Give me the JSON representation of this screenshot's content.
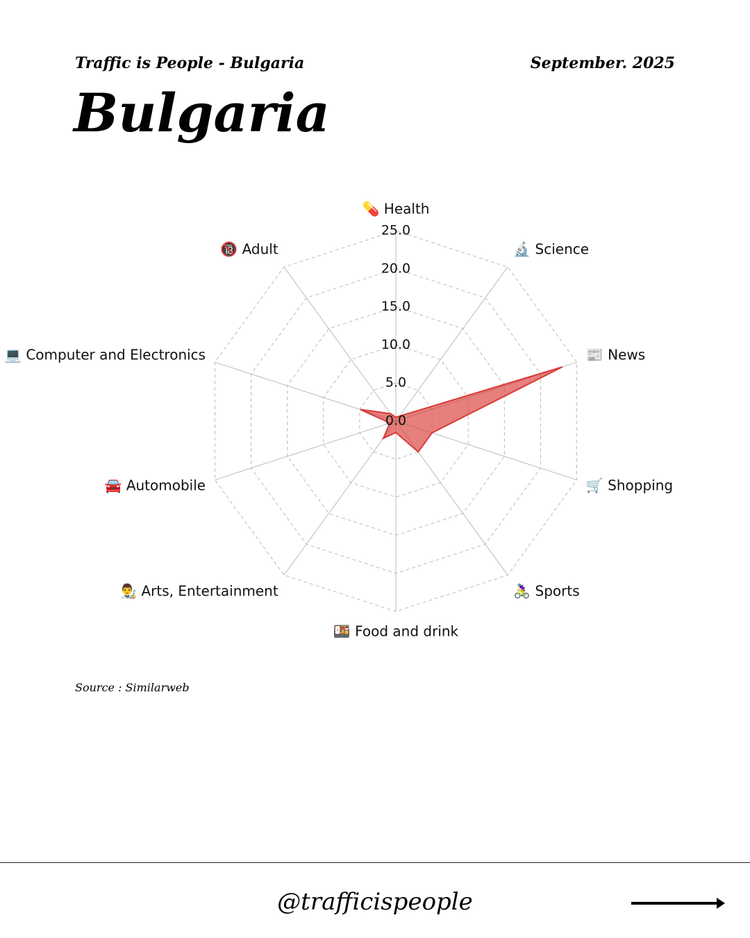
{
  "header": {
    "subtitle": "Traffic is People - Bulgaria",
    "date": "September. 2025",
    "title": "Bulgaria"
  },
  "chart_data": {
    "type": "radar",
    "categories": [
      "💊 Health",
      "🔬 Science",
      "📰 News",
      "🛒 Shopping",
      "🚴‍♀️ Sports",
      "🍱 Food and drink",
      "👨‍🎨 Arts, Entertainment",
      "🚘 Automobile",
      "💻 Computer and Electronics",
      "🔞 Adult"
    ],
    "series": [
      {
        "name": "Bulgaria",
        "color": "#d73c37",
        "values": [
          0.5,
          0.8,
          23.0,
          5.0,
          5.0,
          1.5,
          2.8,
          0.8,
          4.9,
          1.2
        ]
      }
    ],
    "rlim": [
      0,
      25
    ],
    "rticks": [
      {
        "value": 0,
        "label": "0.0"
      },
      {
        "value": 5,
        "label": "5.0"
      },
      {
        "value": 10,
        "label": "10.0"
      },
      {
        "value": 15,
        "label": "15.0"
      },
      {
        "value": 20,
        "label": "20.0"
      },
      {
        "value": 25,
        "label": "25.0"
      }
    ],
    "grid": true
  },
  "source": "Source : Similarweb",
  "footer": {
    "handle": "@trafficispeople"
  }
}
